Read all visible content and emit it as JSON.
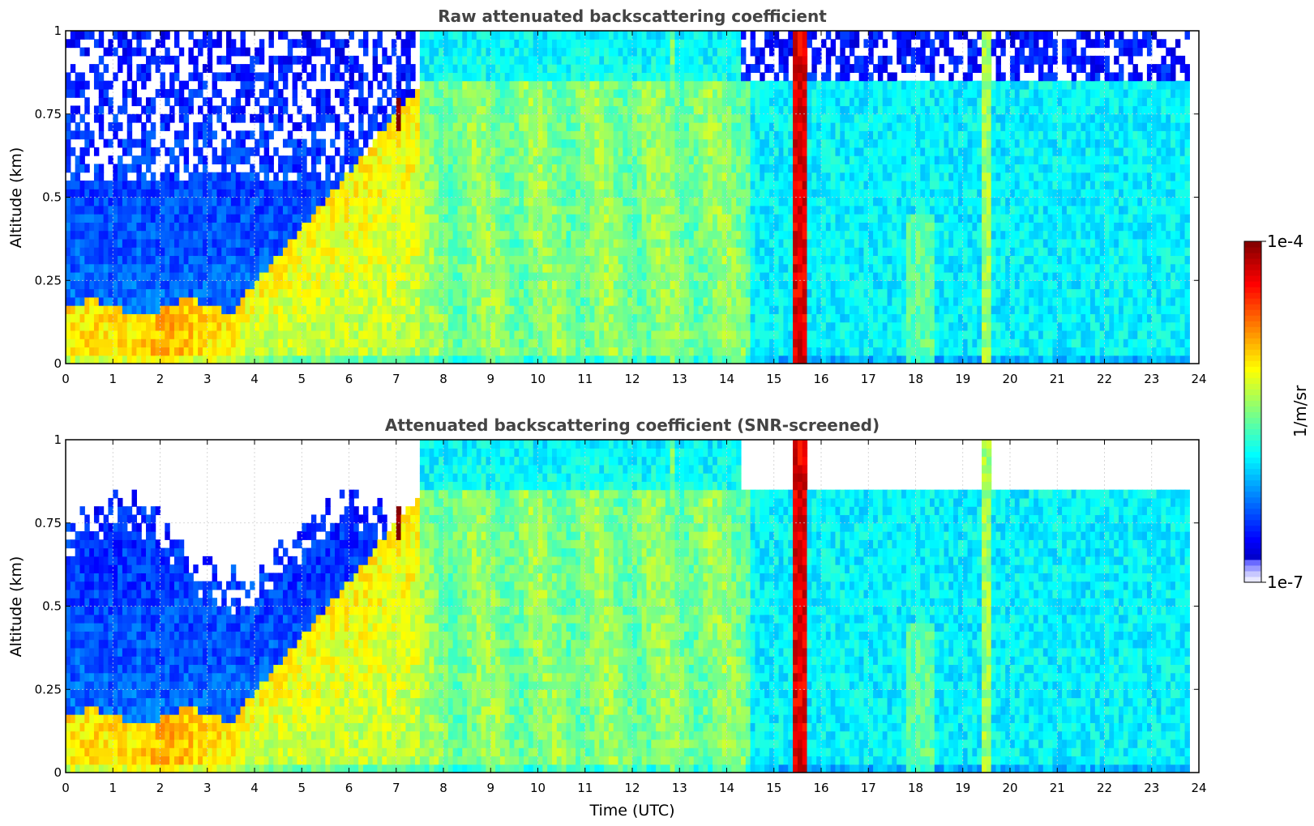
{
  "chart_data": [
    {
      "type": "heatmap",
      "title": "Raw attenuated backscattering coefficient",
      "xlabel": "",
      "ylabel": "Altitude (km)",
      "xlim": [
        0,
        24
      ],
      "ylim": [
        0,
        1
      ],
      "x_ticks": [
        "0",
        "1",
        "2",
        "3",
        "4",
        "5",
        "6",
        "7",
        "8",
        "9",
        "10",
        "11",
        "12",
        "13",
        "14",
        "15",
        "16",
        "17",
        "18",
        "19",
        "20",
        "21",
        "22",
        "23",
        "24"
      ],
      "y_ticks": [
        "0",
        "0.25",
        "0.5",
        "0.75",
        "1"
      ],
      "grid": true,
      "colormap": "jet",
      "color_scale": "log",
      "data_coverage_end_hour": 23.8,
      "features": [
        {
          "kind": "cloud",
          "x_start": 15.35,
          "x_end": 15.7,
          "value": 5e-05
        },
        {
          "kind": "cloud",
          "x_start": 19.42,
          "x_end": 19.55,
          "value": 4e-06
        },
        {
          "kind": "cloud",
          "x_start": 12.78,
          "x_end": 12.9,
          "value": 3e-06
        },
        {
          "kind": "spike",
          "x": 7.1,
          "y_start": 0.7,
          "y_end": 0.8,
          "value": 8e-05
        }
      ]
    },
    {
      "type": "heatmap",
      "title": "Attenuated backscattering coefficient (SNR-screened)",
      "xlabel": "Time (UTC)",
      "ylabel": "Altitude (km)",
      "xlim": [
        0,
        24
      ],
      "ylim": [
        0,
        1
      ],
      "x_ticks": [
        "0",
        "1",
        "2",
        "3",
        "4",
        "5",
        "6",
        "7",
        "8",
        "9",
        "10",
        "11",
        "12",
        "13",
        "14",
        "15",
        "16",
        "17",
        "18",
        "19",
        "20",
        "21",
        "22",
        "23",
        "24"
      ],
      "y_ticks": [
        "0",
        "0.25",
        "0.5",
        "0.75",
        "1"
      ],
      "grid": true,
      "colormap": "jet",
      "color_scale": "log",
      "data_coverage_end_hour": 23.8,
      "screened": true
    }
  ],
  "colorbar": {
    "label": "1/m/sr",
    "max_label": "1e-4",
    "min_label": "1e-7",
    "vmin": 1e-07,
    "vmax": 0.0001,
    "scale": "log",
    "colormap": "jet"
  }
}
